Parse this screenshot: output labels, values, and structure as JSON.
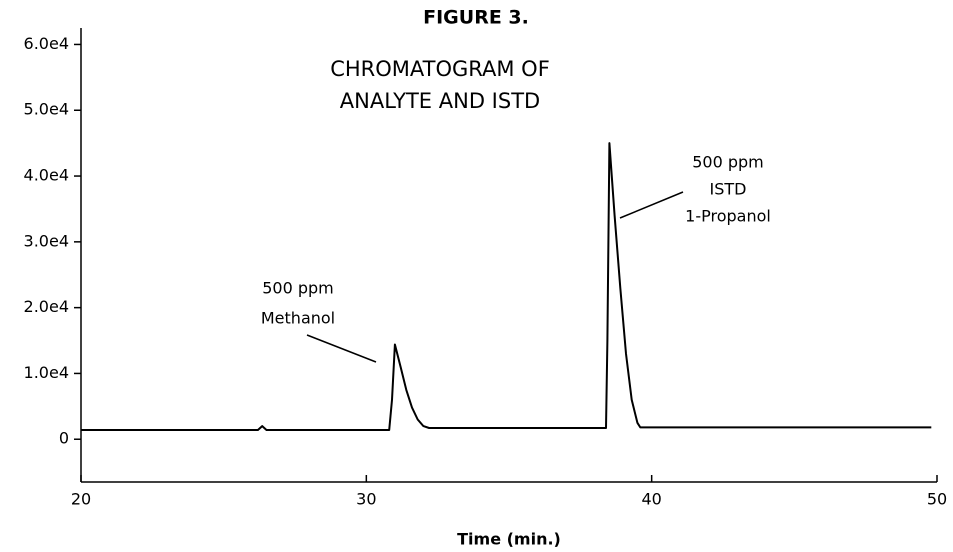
{
  "chart_data": {
    "type": "line",
    "title": "FIGURE 3.",
    "subtitle": [
      "CHROMATOGRAM OF",
      "ANALYTE AND ISTD"
    ],
    "x_label": "Time (min.)",
    "color": "#000000",
    "x": [
      20,
      26.2,
      26.35,
      26.5,
      30.8,
      30.9,
      31.0,
      31.2,
      31.4,
      31.6,
      31.8,
      32.0,
      32.2,
      38.4,
      38.45,
      38.52,
      38.7,
      38.9,
      39.1,
      39.3,
      39.5,
      39.6,
      49.8
    ],
    "values": [
      1400,
      1400,
      2000,
      1400,
      1400,
      6000,
      14400,
      11000,
      7500,
      4800,
      3000,
      2000,
      1700,
      1700,
      15000,
      45000,
      34000,
      23000,
      13000,
      6000,
      2500,
      1800,
      1800
    ],
    "xlim": [
      20,
      50
    ],
    "xticks": [
      20,
      30,
      40,
      50
    ],
    "ylim": [
      -6500,
      62500
    ],
    "yticks": [
      0,
      {
        "value": 10000,
        "label": "1.0e4"
      },
      {
        "value": 20000,
        "label": "2.0e4"
      },
      {
        "value": 30000,
        "label": "3.0e4"
      },
      {
        "value": 40000,
        "label": "4.0e4"
      },
      {
        "value": 50000,
        "label": "5.0e4"
      },
      {
        "value": 60000,
        "label": "6.0e4"
      }
    ],
    "annotations": [
      {
        "lines": [
          "500 ppm",
          "Methanol"
        ]
      },
      {
        "lines": [
          "500 ppm",
          "ISTD",
          "1-Propanol"
        ]
      }
    ]
  }
}
